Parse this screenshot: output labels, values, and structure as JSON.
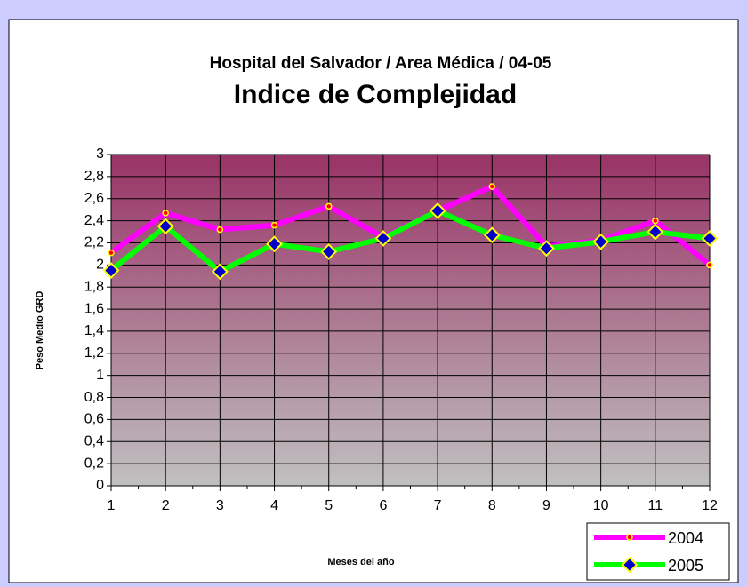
{
  "chart_data": {
    "type": "line",
    "title": "Hospital del Salvador / Area Médica / 04-05",
    "subtitle": "Indice de Complejidad",
    "y_label": "Peso Medio GRD",
    "x_label": "Meses del año",
    "categories": [
      "1",
      "2",
      "3",
      "4",
      "5",
      "6",
      "7",
      "8",
      "9",
      "10",
      "11",
      "12"
    ],
    "series": [
      {
        "name": "2004",
        "color": "#ff00ff",
        "marker_color": "#ff0000",
        "marker": "small",
        "values": [
          2.11,
          2.47,
          2.32,
          2.36,
          2.53,
          2.25,
          2.49,
          2.71,
          2.17,
          2.22,
          2.4,
          2.0
        ]
      },
      {
        "name": "2005",
        "color": "#00ff00",
        "marker_color": "#0000cc",
        "marker": "diamond",
        "values": [
          1.95,
          2.35,
          1.94,
          2.19,
          2.12,
          2.24,
          2.49,
          2.27,
          2.15,
          2.21,
          2.3,
          2.24
        ]
      }
    ],
    "ylim": [
      0,
      3
    ],
    "yticks": [
      0,
      {
        "value": 0.2,
        "label": "0,2"
      },
      {
        "value": 0.4,
        "label": "0,4"
      },
      {
        "value": 0.6,
        "label": "0,6"
      },
      {
        "value": 0.8,
        "label": "0,8"
      },
      1,
      {
        "value": 1.2,
        "label": "1,2"
      },
      {
        "value": 1.4,
        "label": "1,4"
      },
      {
        "value": 1.6,
        "label": "1,6"
      },
      {
        "value": 1.8,
        "label": "1,8"
      },
      2,
      {
        "value": 2.2,
        "label": "2,2"
      },
      {
        "value": 2.4,
        "label": "2,4"
      },
      {
        "value": 2.6,
        "label": "2,6"
      },
      {
        "value": 2.8,
        "label": "2,8"
      },
      3
    ],
    "grid": true,
    "legend": "bottom-right"
  }
}
